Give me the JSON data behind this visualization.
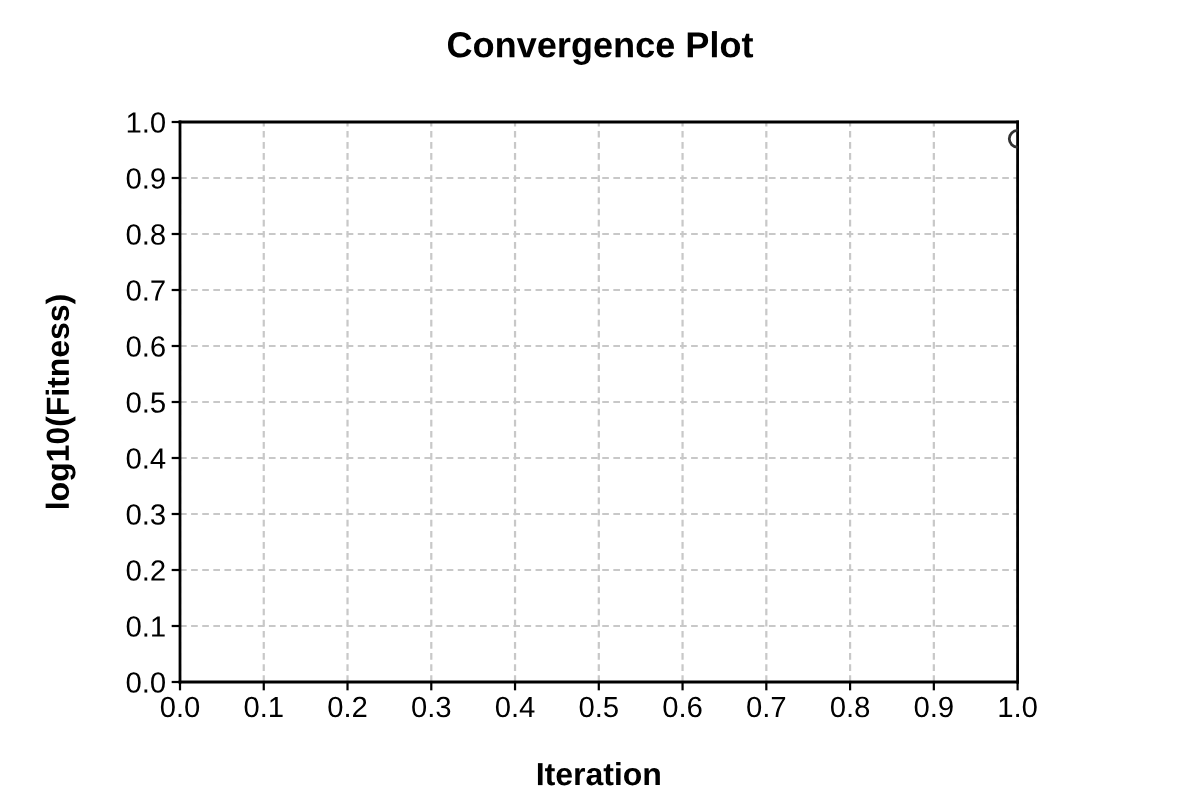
{
  "chart_data": {
    "type": "scatter",
    "title": "Convergence Plot",
    "xlabel": "Iteration",
    "ylabel": "log10(Fitness)",
    "x": [
      1.0
    ],
    "values": [
      0.97
    ],
    "color": "#333333",
    "marker": "circle",
    "xlim": [
      0,
      1
    ],
    "ylim": [
      0,
      1
    ],
    "xticks": [
      {
        "value": 0,
        "label": "0.0"
      },
      0.1,
      0.2,
      0.3,
      0.4,
      0.5,
      0.6,
      0.7,
      0.8,
      0.9,
      {
        "value": 1,
        "label": "1.0"
      }
    ],
    "yticks": [
      {
        "value": 0,
        "label": "0.0"
      },
      0.1,
      0.2,
      0.3,
      0.4,
      0.5,
      0.6,
      0.7,
      0.8,
      0.9,
      {
        "value": 1,
        "label": "1.0"
      }
    ],
    "grid": true
  }
}
